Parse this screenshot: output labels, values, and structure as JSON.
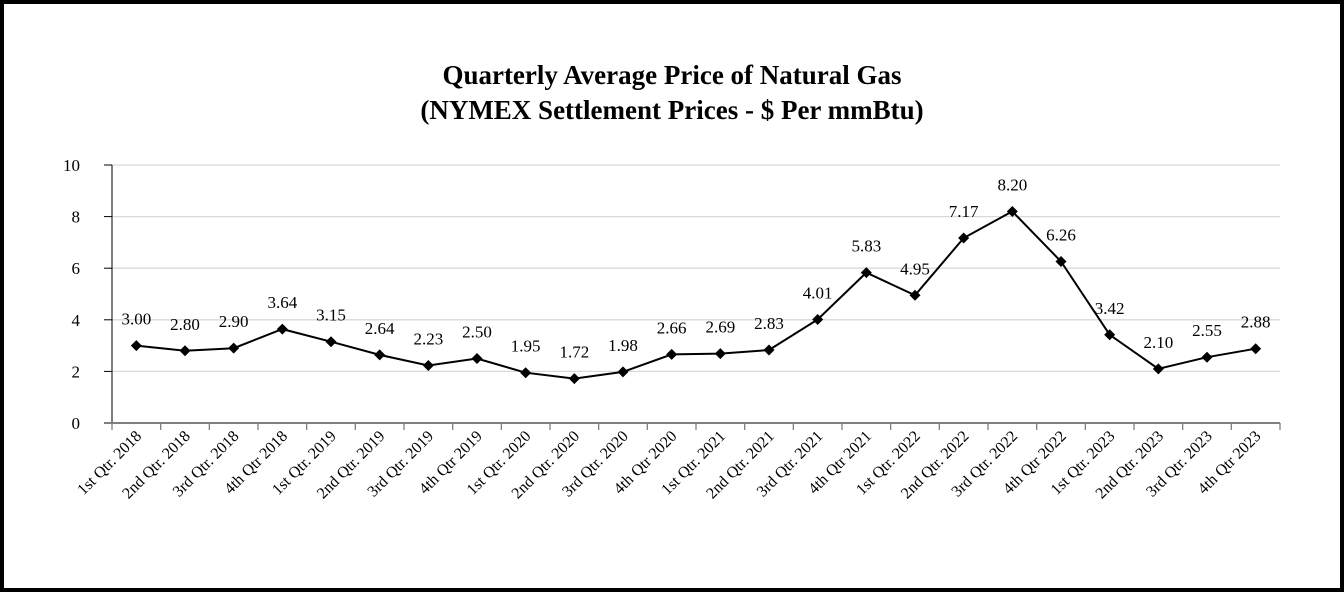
{
  "chart_data": {
    "type": "line",
    "title": "Quarterly Average Price of Natural Gas",
    "subtitle": "(NYMEX Settlement Prices - $ Per mmBtu)",
    "xlabel": "",
    "ylabel": "",
    "ylim": [
      0,
      10
    ],
    "yticks": [
      "0",
      "2",
      "4",
      "6",
      "8",
      "10"
    ],
    "grid": true,
    "legend": "none",
    "categories": [
      "1st Qtr. 2018",
      "2nd Qtr. 2018",
      "3rd Qtr. 2018",
      "4th Qtr 2018",
      "1st Qtr. 2019",
      "2nd Qtr. 2019",
      "3rd Qtr. 2019",
      "4th Qtr 2019",
      "1st Qtr. 2020",
      "2nd Qtr. 2020",
      "3rd Qtr. 2020",
      "4th Qtr 2020",
      "1st Qtr. 2021",
      "2nd Qtr. 2021",
      "3rd Qtr. 2021",
      "4th Qtr 2021",
      "1st Qtr. 2022",
      "2nd Qtr. 2022",
      "3rd Qtr. 2022",
      "4th Qtr 2022",
      "1st Qtr. 2023",
      "2nd Qtr. 2023",
      "3rd Qtr. 2023",
      "4th Qtr 2023"
    ],
    "values": [
      3.0,
      2.8,
      2.9,
      3.64,
      3.15,
      2.64,
      2.23,
      2.5,
      1.95,
      1.72,
      1.98,
      2.66,
      2.69,
      2.83,
      4.01,
      5.83,
      4.95,
      7.17,
      8.2,
      6.26,
      3.42,
      2.1,
      2.55,
      2.88
    ],
    "data_labels": [
      "3.00",
      "2.80",
      "2.90",
      "3.64",
      "3.15",
      "2.64",
      "2.23",
      "2.50",
      "1.95",
      "1.72",
      "1.98",
      "2.66",
      "2.69",
      "2.83",
      "4.01",
      "5.83",
      "4.95",
      "7.17",
      "8.20",
      "6.26",
      "3.42",
      "2.10",
      "2.55",
      "2.88"
    ],
    "line_color": "#000000",
    "grid_color": "#d9d9d9"
  }
}
